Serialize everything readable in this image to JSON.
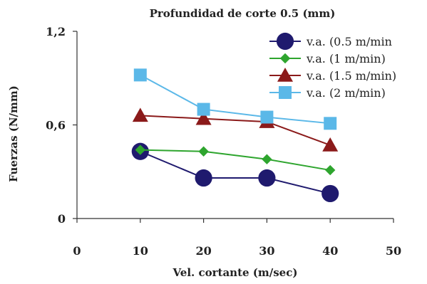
{
  "chart_data": {
    "type": "line",
    "title": "Profundidad de corte 0.5 (mm)",
    "xlabel": "Vel. cortante (m/sec)",
    "ylabel": "Fuerzas (N/mm)",
    "xlim": [
      0,
      50
    ],
    "ylim": [
      0,
      1.2
    ],
    "x_ticks": [
      "0",
      "10",
      "20",
      "30",
      "40",
      "50"
    ],
    "y_ticks": [
      "0",
      "0,6",
      "1,2"
    ],
    "grid": false,
    "legend_position": "top-right",
    "x": [
      10,
      20,
      30,
      40
    ],
    "series": [
      {
        "name": "v.a. (0.5 m/min",
        "marker": "circle",
        "color": "#1f1a6e",
        "values": [
          0.43,
          0.26,
          0.26,
          0.16
        ]
      },
      {
        "name": "v.a. (1 m/min)",
        "marker": "diamond",
        "color": "#2ea52e",
        "values": [
          0.44,
          0.43,
          0.38,
          0.31
        ]
      },
      {
        "name": "v.a. (1.5 m/min)",
        "marker": "triangle",
        "color": "#8b1a1a",
        "values": [
          0.66,
          0.64,
          0.62,
          0.47
        ]
      },
      {
        "name": "v.a. (2 m/min)",
        "marker": "square",
        "color": "#5bb8e8",
        "values": [
          0.92,
          0.7,
          0.65,
          0.61
        ]
      }
    ]
  }
}
